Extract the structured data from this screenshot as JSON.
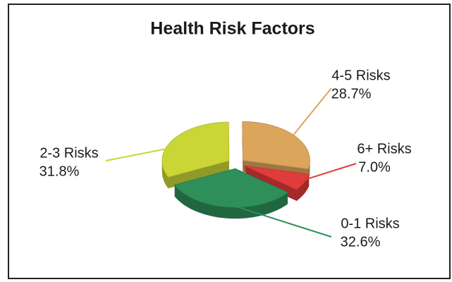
{
  "chart_data": {
    "type": "pie",
    "title": "Health Risk Factors",
    "categories": [
      "0-1 Risks",
      "2-3 Risks",
      "4-5 Risks",
      "6+ Risks"
    ],
    "values": [
      32.6,
      31.8,
      28.7,
      7.0
    ],
    "value_labels": [
      "32.6%",
      "31.8%",
      "28.7%",
      "7.0%"
    ],
    "colors": [
      "#2e8f5a",
      "#c9d636",
      "#dba55c",
      "#e23b3b"
    ]
  }
}
